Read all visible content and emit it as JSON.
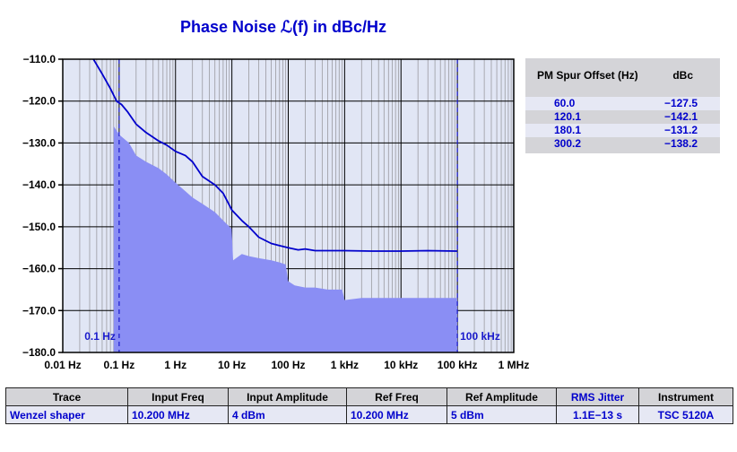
{
  "chart_data": {
    "type": "area",
    "title": "Phase Noise ℒ(f) in dBc/Hz",
    "x_scale": "log",
    "xlim": [
      0.01,
      1000000
    ],
    "ylim": [
      -180,
      -110
    ],
    "grid": true,
    "x_tick_labels": [
      "0.01 Hz",
      "0.1 Hz",
      "1 Hz",
      "10 Hz",
      "100 Hz",
      "1 kHz",
      "10 kHz",
      "100 kHz",
      "1 MHz"
    ],
    "x_tick_values": [
      0.01,
      0.1,
      1,
      10,
      100,
      1000,
      10000,
      100000,
      1000000
    ],
    "y_tick_labels": [
      "−110.0",
      "−120.0",
      "−130.0",
      "−140.0",
      "−150.0",
      "−160.0",
      "−170.0",
      "−180.0"
    ],
    "y_tick_values": [
      -110,
      -120,
      -130,
      -140,
      -150,
      -160,
      -170,
      -180
    ],
    "markers": [
      {
        "label": "0.1 Hz",
        "x": 0.1
      },
      {
        "label": "100 kHz",
        "x": 100000
      }
    ],
    "series": [
      {
        "kind": "line",
        "color": "#0000cc",
        "x": [
          0.035,
          0.05,
          0.07,
          0.09,
          0.11,
          0.14,
          0.2,
          0.3,
          0.5,
          0.7,
          1.0,
          1.5,
          2,
          3,
          5,
          7,
          10,
          15,
          20,
          30,
          50,
          70,
          100,
          150,
          200,
          300,
          500,
          1000,
          3000,
          10000,
          30000,
          100000
        ],
        "y": [
          -110,
          -113.5,
          -117,
          -120,
          -120.8,
          -122.5,
          -125.5,
          -127.5,
          -129.5,
          -130.5,
          -132,
          -133,
          -134.5,
          -138,
          -140,
          -142,
          -146,
          -148.5,
          -150,
          -152.5,
          -154,
          -154.5,
          -155,
          -155.5,
          -155.3,
          -155.7,
          -155.7,
          -155.7,
          -155.8,
          -155.8,
          -155.7,
          -155.8
        ]
      },
      {
        "kind": "area",
        "color": "#8a8ef4",
        "x": [
          0.08,
          0.1,
          0.15,
          0.2,
          0.3,
          0.5,
          0.7,
          1.0,
          1.5,
          2,
          3,
          5,
          7,
          9.9,
          10.5,
          15,
          20,
          30,
          50,
          70,
          90,
          100,
          130,
          200,
          300,
          500,
          700,
          900,
          1000,
          2000,
          5000,
          10000,
          30000,
          100000
        ],
        "y": [
          -126,
          -128,
          -130,
          -133,
          -134.5,
          -136,
          -137.5,
          -139.5,
          -141.5,
          -143,
          -144.5,
          -146.5,
          -148.5,
          -150.5,
          -158,
          -156.5,
          -157,
          -157.5,
          -158,
          -158.5,
          -159,
          -163,
          -164,
          -164.5,
          -164.5,
          -165,
          -165,
          -165,
          -167.5,
          -167,
          -167,
          -167,
          -167,
          -167
        ]
      }
    ]
  },
  "spur_table": {
    "headers": [
      "PM Spur Offset (Hz)",
      "dBc"
    ],
    "rows": [
      {
        "offset": "60.0",
        "dbc": "−127.5"
      },
      {
        "offset": "120.1",
        "dbc": "−142.1"
      },
      {
        "offset": "180.1",
        "dbc": "−131.2"
      },
      {
        "offset": "300.2",
        "dbc": "−138.2"
      }
    ]
  },
  "info_table": {
    "headers": [
      "Trace",
      "Input Freq",
      "Input Amplitude",
      "Ref Freq",
      "Ref Amplitude",
      "RMS Jitter",
      "Instrument"
    ],
    "row": [
      "Wenzel shaper",
      "10.200 MHz",
      "4 dBm",
      "10.200 MHz",
      "5 dBm",
      "1.1E−13 s",
      "TSC 5120A"
    ]
  },
  "colors": {
    "plot_background": "#e1e6f5",
    "trace": "#0000cc",
    "fill": "#8a8ef4",
    "grid_major": "#000000",
    "grid_minor": "#9a9aa0"
  }
}
